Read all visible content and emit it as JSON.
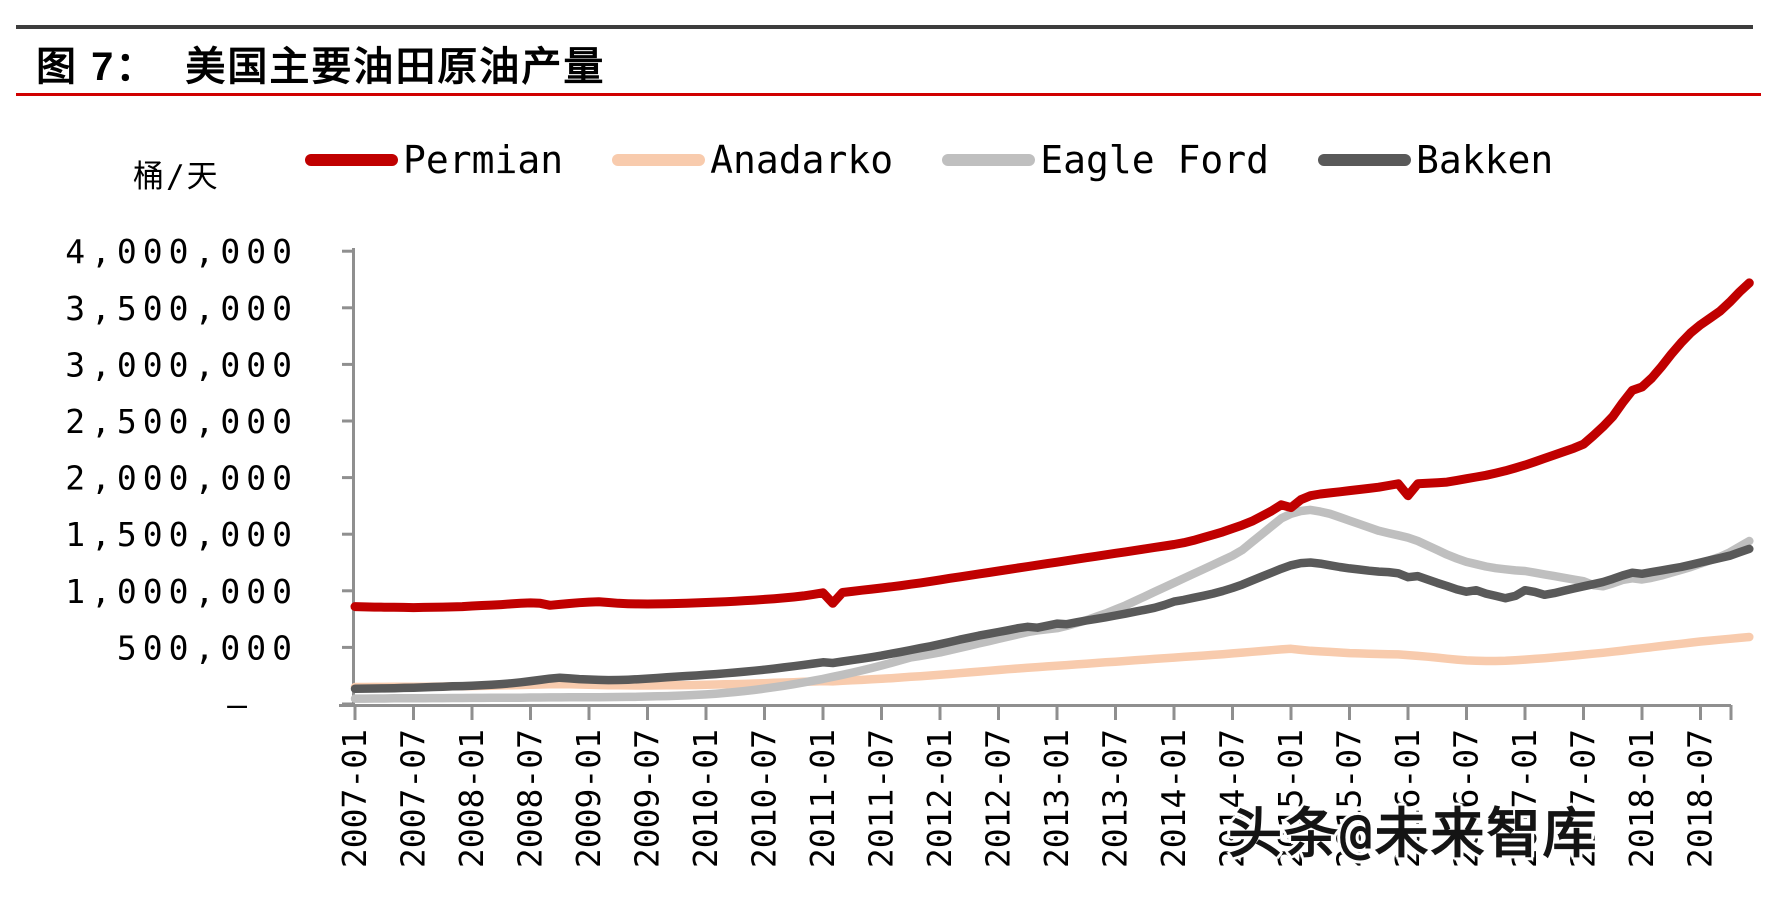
{
  "page": {
    "figure_no": "图 7：",
    "title": "美国主要油田原油产量",
    "watermark": "头条@未来智库"
  },
  "chart_data": {
    "type": "line",
    "title": "美国主要油田原油产量",
    "unit_label": "桶/天",
    "unit": "barrels per day",
    "grid": false,
    "legend_position": "top",
    "axis_color": "#8f8f8f",
    "ylim": [
      0,
      4000000
    ],
    "y_ticks": [
      {
        "value": 0,
        "label": "–"
      },
      {
        "value": 500000,
        "label": "500,000"
      },
      {
        "value": 1000000,
        "label": "1,000,000"
      },
      {
        "value": 1500000,
        "label": "1,500,000"
      },
      {
        "value": 2000000,
        "label": "2,000,000"
      },
      {
        "value": 2500000,
        "label": "2,500,000"
      },
      {
        "value": 3000000,
        "label": "3,000,000"
      },
      {
        "value": 3500000,
        "label": "3,500,000"
      },
      {
        "value": 4000000,
        "label": "4,000,000"
      }
    ],
    "x_start": "2007-01",
    "x_end": "2018-12",
    "x_interval": "monthly",
    "x_tick_labels": [
      "2007-01",
      "2007-07",
      "2008-01",
      "2008-07",
      "2009-01",
      "2009-07",
      "2010-01",
      "2010-07",
      "2011-01",
      "2011-07",
      "2012-01",
      "2012-07",
      "2013-01",
      "2013-07",
      "2014-01",
      "2014-07",
      "2015-01",
      "2015-07",
      "2016-01",
      "2016-07",
      "2017-01",
      "2017-07",
      "2018-01",
      "2018-07"
    ],
    "series": [
      {
        "name": "Permian",
        "color": "#c00000",
        "values": [
          860000,
          858000,
          856000,
          855000,
          854000,
          853000,
          852000,
          853000,
          855000,
          856000,
          858000,
          860000,
          866000,
          870000,
          874000,
          878000,
          884000,
          890000,
          893000,
          890000,
          872000,
          880000,
          888000,
          895000,
          900000,
          903000,
          897000,
          890000,
          886000,
          884000,
          883000,
          884000,
          886000,
          888000,
          890000,
          893000,
          897000,
          900000,
          904000,
          908000,
          913000,
          918000,
          924000,
          930000,
          937000,
          945000,
          955000,
          968000,
          982000,
          890000,
          985000,
          995000,
          1005000,
          1015000,
          1025000,
          1035000,
          1046000,
          1058000,
          1070000,
          1083000,
          1096000,
          1110000,
          1123000,
          1136000,
          1149000,
          1162000,
          1175000,
          1188000,
          1201000,
          1214000,
          1227000,
          1240000,
          1253000,
          1266000,
          1279000,
          1292000,
          1305000,
          1318000,
          1331000,
          1344000,
          1357000,
          1370000,
          1383000,
          1396000,
          1409000,
          1425000,
          1445000,
          1470000,
          1495000,
          1520000,
          1550000,
          1580000,
          1615000,
          1660000,
          1705000,
          1760000,
          1735000,
          1805000,
          1840000,
          1855000,
          1865000,
          1875000,
          1885000,
          1895000,
          1905000,
          1915000,
          1930000,
          1945000,
          1840000,
          1945000,
          1950000,
          1955000,
          1960000,
          1975000,
          1990000,
          2005000,
          2020000,
          2040000,
          2060000,
          2085000,
          2110000,
          2140000,
          2170000,
          2200000,
          2230000,
          2260000,
          2295000,
          2370000,
          2450000,
          2540000,
          2660000,
          2770000,
          2800000,
          2880000,
          2980000,
          3090000,
          3190000,
          3280000,
          3350000,
          3410000,
          3470000,
          3550000,
          3640000,
          3720000
        ]
      },
      {
        "name": "Anadarko",
        "color": "#f8cbad",
        "values": [
          150000,
          150000,
          151000,
          151000,
          152000,
          152000,
          153000,
          153000,
          154000,
          155000,
          156000,
          157000,
          158000,
          160000,
          162000,
          164000,
          166000,
          168000,
          170000,
          172000,
          174000,
          175000,
          174000,
          172000,
          170000,
          168000,
          166000,
          165000,
          164000,
          163000,
          163000,
          164000,
          165000,
          166000,
          167000,
          168000,
          170000,
          172000,
          174000,
          176000,
          178000,
          181000,
          184000,
          187000,
          190000,
          193000,
          196000,
          199000,
          202000,
          200000,
          205000,
          209000,
          213000,
          218000,
          223000,
          228000,
          234000,
          240000,
          246000,
          252000,
          258000,
          265000,
          272000,
          279000,
          286000,
          293000,
          300000,
          307000,
          314000,
          320000,
          326000,
          332000,
          338000,
          344000,
          350000,
          356000,
          362000,
          368000,
          374000,
          380000,
          386000,
          392000,
          398000,
          404000,
          410000,
          416000,
          422000,
          428000,
          434000,
          440000,
          447000,
          454000,
          461000,
          468000,
          475000,
          482000,
          488000,
          478000,
          470000,
          465000,
          460000,
          455000,
          450000,
          447000,
          444000,
          442000,
          440000,
          438000,
          432000,
          425000,
          418000,
          410000,
          400000,
          392000,
          385000,
          382000,
          380000,
          380000,
          382000,
          386000,
          392000,
          398000,
          405000,
          412000,
          420000,
          428000,
          436000,
          444000,
          452000,
          462000,
          472000,
          482000,
          492000,
          502000,
          512000,
          522000,
          532000,
          542000,
          552000,
          560000,
          568000,
          576000,
          584000,
          592000
        ]
      },
      {
        "name": "Eagle Ford",
        "color": "#bfbfbf",
        "values": [
          48000,
          48000,
          49000,
          49000,
          50000,
          50000,
          51000,
          51000,
          52000,
          52000,
          53000,
          53000,
          54000,
          54000,
          55000,
          55000,
          56000,
          56000,
          57000,
          57000,
          58000,
          58000,
          59000,
          59000,
          60000,
          60000,
          61000,
          62000,
          63000,
          64000,
          66000,
          68000,
          70000,
          73000,
          76000,
          80000,
          85000,
          91000,
          98000,
          106000,
          115000,
          125000,
          136000,
          148000,
          161000,
          175000,
          190000,
          206000,
          222000,
          240000,
          258000,
          277000,
          297000,
          318000,
          340000,
          363000,
          387000,
          412000,
          425000,
          440000,
          455000,
          475000,
          495000,
          515000,
          535000,
          555000,
          575000,
          595000,
          615000,
          635000,
          650000,
          660000,
          670000,
          690000,
          715000,
          740000,
          770000,
          800000,
          835000,
          870000,
          910000,
          950000,
          990000,
          1030000,
          1070000,
          1110000,
          1150000,
          1190000,
          1230000,
          1270000,
          1310000,
          1360000,
          1430000,
          1500000,
          1570000,
          1640000,
          1680000,
          1705000,
          1715000,
          1700000,
          1680000,
          1650000,
          1620000,
          1590000,
          1560000,
          1530000,
          1510000,
          1490000,
          1470000,
          1440000,
          1400000,
          1360000,
          1320000,
          1285000,
          1255000,
          1235000,
          1215000,
          1200000,
          1190000,
          1180000,
          1175000,
          1160000,
          1145000,
          1130000,
          1115000,
          1100000,
          1085000,
          1050000,
          1040000,
          1065000,
          1095000,
          1110000,
          1100000,
          1115000,
          1135000,
          1160000,
          1185000,
          1210000,
          1240000,
          1270000,
          1300000,
          1340000,
          1390000,
          1440000
        ]
      },
      {
        "name": "Bakken",
        "color": "#595959",
        "values": [
          135000,
          136000,
          137000,
          138000,
          140000,
          142000,
          144000,
          147000,
          150000,
          153000,
          156000,
          158000,
          161000,
          165000,
          170000,
          176000,
          183000,
          192000,
          202000,
          213000,
          224000,
          232000,
          226000,
          220000,
          216000,
          213000,
          211000,
          212000,
          215000,
          219000,
          224000,
          230000,
          236000,
          242000,
          247000,
          252000,
          258000,
          264000,
          271000,
          278000,
          286000,
          294000,
          303000,
          313000,
          323000,
          334000,
          345000,
          357000,
          368000,
          362000,
          375000,
          388000,
          400000,
          413000,
          428000,
          444000,
          460000,
          477000,
          494000,
          510000,
          528000,
          548000,
          568000,
          586000,
          604000,
          620000,
          636000,
          652000,
          670000,
          682000,
          674000,
          692000,
          710000,
          705000,
          722000,
          738000,
          752000,
          766000,
          782000,
          798000,
          815000,
          832000,
          850000,
          875000,
          905000,
          920000,
          938000,
          956000,
          975000,
          998000,
          1025000,
          1055000,
          1090000,
          1125000,
          1160000,
          1195000,
          1225000,
          1245000,
          1250000,
          1240000,
          1225000,
          1210000,
          1198000,
          1188000,
          1178000,
          1170000,
          1165000,
          1155000,
          1120000,
          1130000,
          1100000,
          1070000,
          1042000,
          1012000,
          992000,
          1005000,
          975000,
          955000,
          935000,
          955000,
          1005000,
          990000,
          965000,
          980000,
          1000000,
          1020000,
          1040000,
          1058000,
          1078000,
          1105000,
          1135000,
          1160000,
          1150000,
          1165000,
          1180000,
          1195000,
          1210000,
          1230000,
          1250000,
          1270000,
          1290000,
          1310000,
          1340000,
          1370000
        ]
      }
    ]
  }
}
